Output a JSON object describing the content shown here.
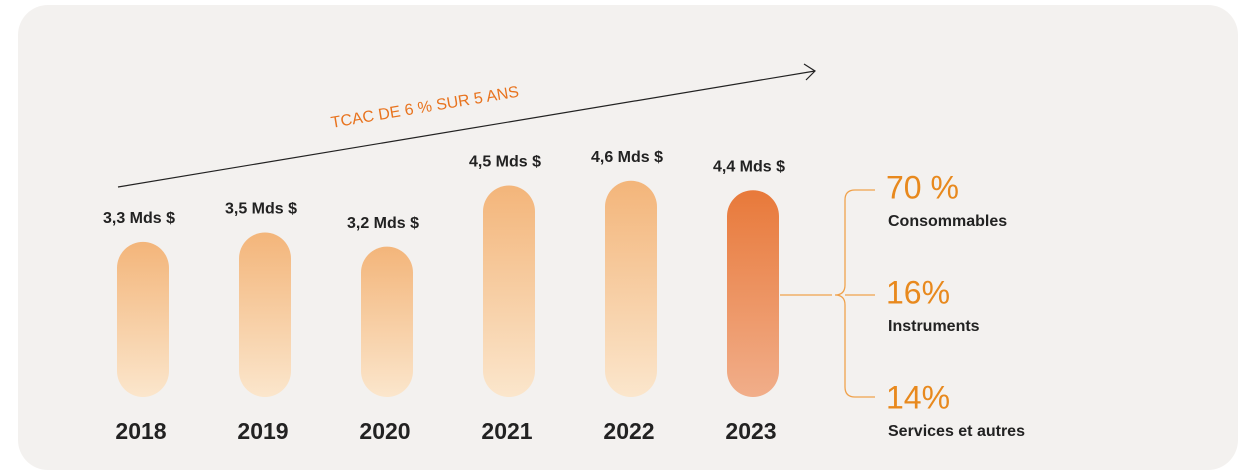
{
  "chart_data": {
    "type": "bar",
    "annotation": "TCAC DE 6 % SUR 5 ANS",
    "categories": [
      "2018",
      "2019",
      "2020",
      "2021",
      "2022",
      "2023"
    ],
    "values": [
      3.3,
      3.5,
      3.2,
      4.5,
      4.6,
      4.4
    ],
    "value_labels": [
      "3,3 Mds $",
      "3,5 Mds $",
      "3,2 Mds $",
      "4,5 Mds $",
      "4,6 Mds $",
      "4,4 Mds $"
    ],
    "breakdown": {
      "labels": [
        "Consommables",
        "Instruments",
        "Services et autres"
      ],
      "values": [
        70,
        16,
        14
      ],
      "value_labels": [
        "70 %",
        "16%",
        "14%"
      ]
    }
  }
}
